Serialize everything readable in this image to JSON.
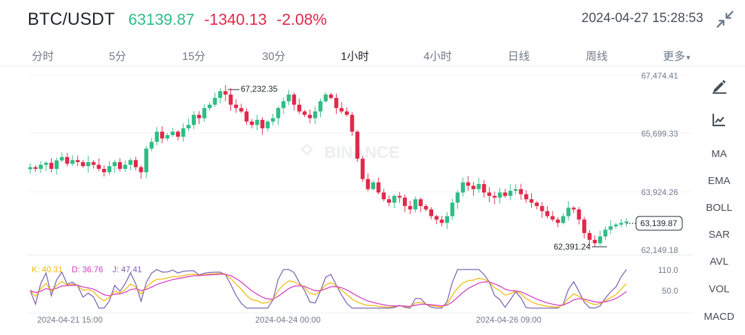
{
  "header": {
    "pair": "BTC/USDT",
    "price": "63139.87",
    "change": "-1340.13",
    "change_pct": "-2.08%",
    "datetime": "2024-04-27 15:28:53",
    "collapse_icon": "collapse-arrows-icon"
  },
  "tabs": [
    {
      "label": "分时",
      "active": false
    },
    {
      "label": "5分",
      "active": false
    },
    {
      "label": "15分",
      "active": false
    },
    {
      "label": "30分",
      "active": false
    },
    {
      "label": "1小时",
      "active": true
    },
    {
      "label": "4小时",
      "active": false
    },
    {
      "label": "日线",
      "active": false
    },
    {
      "label": "周线",
      "active": false
    },
    {
      "label": "更多",
      "active": false
    }
  ],
  "more_caret": "▾",
  "price_axis": [
    "67,474.41",
    "65,699.33",
    "63,924.26",
    "62,149.18"
  ],
  "indicator_axis": [
    "110.0",
    "50.0"
  ],
  "time_axis": [
    "2024-04-21 15:00",
    "2024-04-24 00:00",
    "2024-04-26 09:00"
  ],
  "watermark": "BINANCE",
  "annotations": {
    "high": "67,232.35",
    "low": "62,391.24",
    "last": "63,139.87"
  },
  "kdj": {
    "k_label": "K: 40.31",
    "d_label": "D: 36.76",
    "j_label": "J: 47.41",
    "k_color": "#f0b90b",
    "d_color": "#d63bbf",
    "j_color": "#7b62b5"
  },
  "colors": {
    "up": "#2ebd85",
    "down": "#e0294a",
    "text": "#1e2329",
    "muted": "#707a8a"
  },
  "sidebar": {
    "draw_icon": "pencil-draw-icon",
    "indicator_icon": "chart-indicator-icon",
    "items": [
      "MA",
      "EMA",
      "BOLL",
      "SAR",
      "AVL",
      "VOL",
      "MACD"
    ]
  },
  "chart_data": {
    "type": "candlestick",
    "symbol": "BTC/USDT",
    "interval": "1小时",
    "ylim": [
      62149.18,
      67474.41
    ],
    "yticks": [
      67474.41,
      65699.33,
      63924.26,
      62149.18
    ],
    "xticks": [
      "2024-04-21 15:00",
      "2024-04-24 00:00",
      "2024-04-26 09:00"
    ],
    "high": 67232.35,
    "low": 62391.24,
    "last": 63139.87,
    "close_path": [
      64750,
      64700,
      64820,
      64880,
      64700,
      64950,
      65050,
      64850,
      64960,
      64900,
      64780,
      64900,
      64820,
      64700,
      64600,
      64780,
      64900,
      64700,
      64820,
      64960,
      64750,
      64600,
      65300,
      65500,
      65800,
      65600,
      65700,
      65800,
      65650,
      65900,
      66000,
      66300,
      66200,
      66500,
      66600,
      66800,
      67000,
      66900,
      66600,
      66500,
      66400,
      66100,
      66000,
      66150,
      65900,
      66100,
      66200,
      66500,
      66700,
      66900,
      66600,
      66400,
      66300,
      66200,
      66400,
      66700,
      66900,
      66800,
      66500,
      66400,
      66300,
      65800,
      65000,
      64400,
      64100,
      64300,
      64000,
      63800,
      63700,
      63900,
      63850,
      63600,
      63500,
      63800,
      63600,
      63500,
      63300,
      63200,
      63100,
      63300,
      63700,
      64000,
      64300,
      64200,
      64100,
      64250,
      64000,
      63900,
      63850,
      64000,
      63900,
      64050,
      64100,
      63950,
      63800,
      63700,
      63600,
      63450,
      63300,
      63200,
      63100,
      63300,
      63550,
      63500,
      63200,
      62800,
      62600,
      62500,
      62700,
      62900,
      63000,
      63050,
      63100,
      63139.87
    ],
    "kdj_series": [
      {
        "name": "K",
        "value": 40.31
      },
      {
        "name": "D",
        "value": 36.76
      },
      {
        "name": "J",
        "value": 47.41
      }
    ],
    "kdj_ylim": [
      0,
      110
    ],
    "kdj_yticks": [
      110.0,
      50.0
    ]
  }
}
